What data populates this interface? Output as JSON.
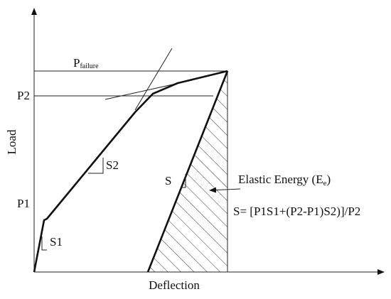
{
  "labels": {
    "p_failure": "P",
    "p_failure_sub": "failure",
    "p2": "P2",
    "p1": "P1",
    "y_axis": "Load",
    "x_axis": "Deflection",
    "s1": "S1",
    "s2": "S2",
    "s": "S",
    "elastic_energy": "Elastic Energy (E",
    "elastic_energy_sub": "e",
    "elastic_energy_close": ")",
    "formula": "S= [P1S1+(P2-P1)S2)]/P2"
  }
}
